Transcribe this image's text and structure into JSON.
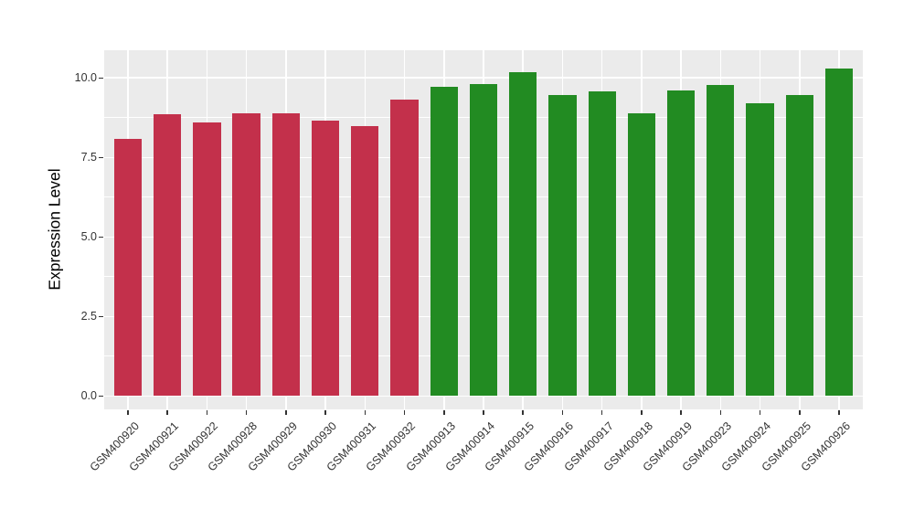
{
  "chart_data": {
    "type": "bar",
    "title": "",
    "ylabel": "Expression Level",
    "xlabel": "",
    "categories": [
      "GSM400920",
      "GSM400921",
      "GSM400922",
      "GSM400928",
      "GSM400929",
      "GSM400930",
      "GSM400931",
      "GSM400932",
      "GSM400913",
      "GSM400914",
      "GSM400915",
      "GSM400916",
      "GSM400917",
      "GSM400918",
      "GSM400919",
      "GSM400923",
      "GSM400924",
      "GSM400925",
      "GSM400926"
    ],
    "values": [
      8.07,
      8.85,
      8.61,
      8.88,
      8.9,
      8.67,
      8.49,
      9.32,
      9.73,
      9.8,
      10.17,
      9.46,
      9.58,
      8.89,
      9.6,
      9.79,
      9.2,
      9.47,
      10.3
    ],
    "bar_groups": [
      "red",
      "red",
      "red",
      "red",
      "red",
      "red",
      "red",
      "red",
      "green",
      "green",
      "green",
      "green",
      "green",
      "green",
      "green",
      "green",
      "green",
      "green",
      "green"
    ],
    "palette": {
      "red": "#C3304B",
      "green": "#228B22"
    },
    "yticks": [
      0,
      2.5,
      5,
      7.5,
      10
    ],
    "ytick_labels": [
      "0.0",
      "2.5",
      "5.0",
      "7.5",
      "10.0"
    ],
    "minor_ticks": [
      1.25,
      3.75,
      6.25,
      8.75
    ],
    "ylim": [
      -0.42,
      10.87
    ],
    "bar_width_fraction": 0.7,
    "x_label_rotation_deg": 45,
    "legend": "none",
    "grid": "horizontal major+minor, vertical major per category",
    "panel_bg": "#EBEBEB",
    "grid_color": "#FFFFFF",
    "tick_color": "#333333",
    "axis_text_color": "#333333"
  }
}
